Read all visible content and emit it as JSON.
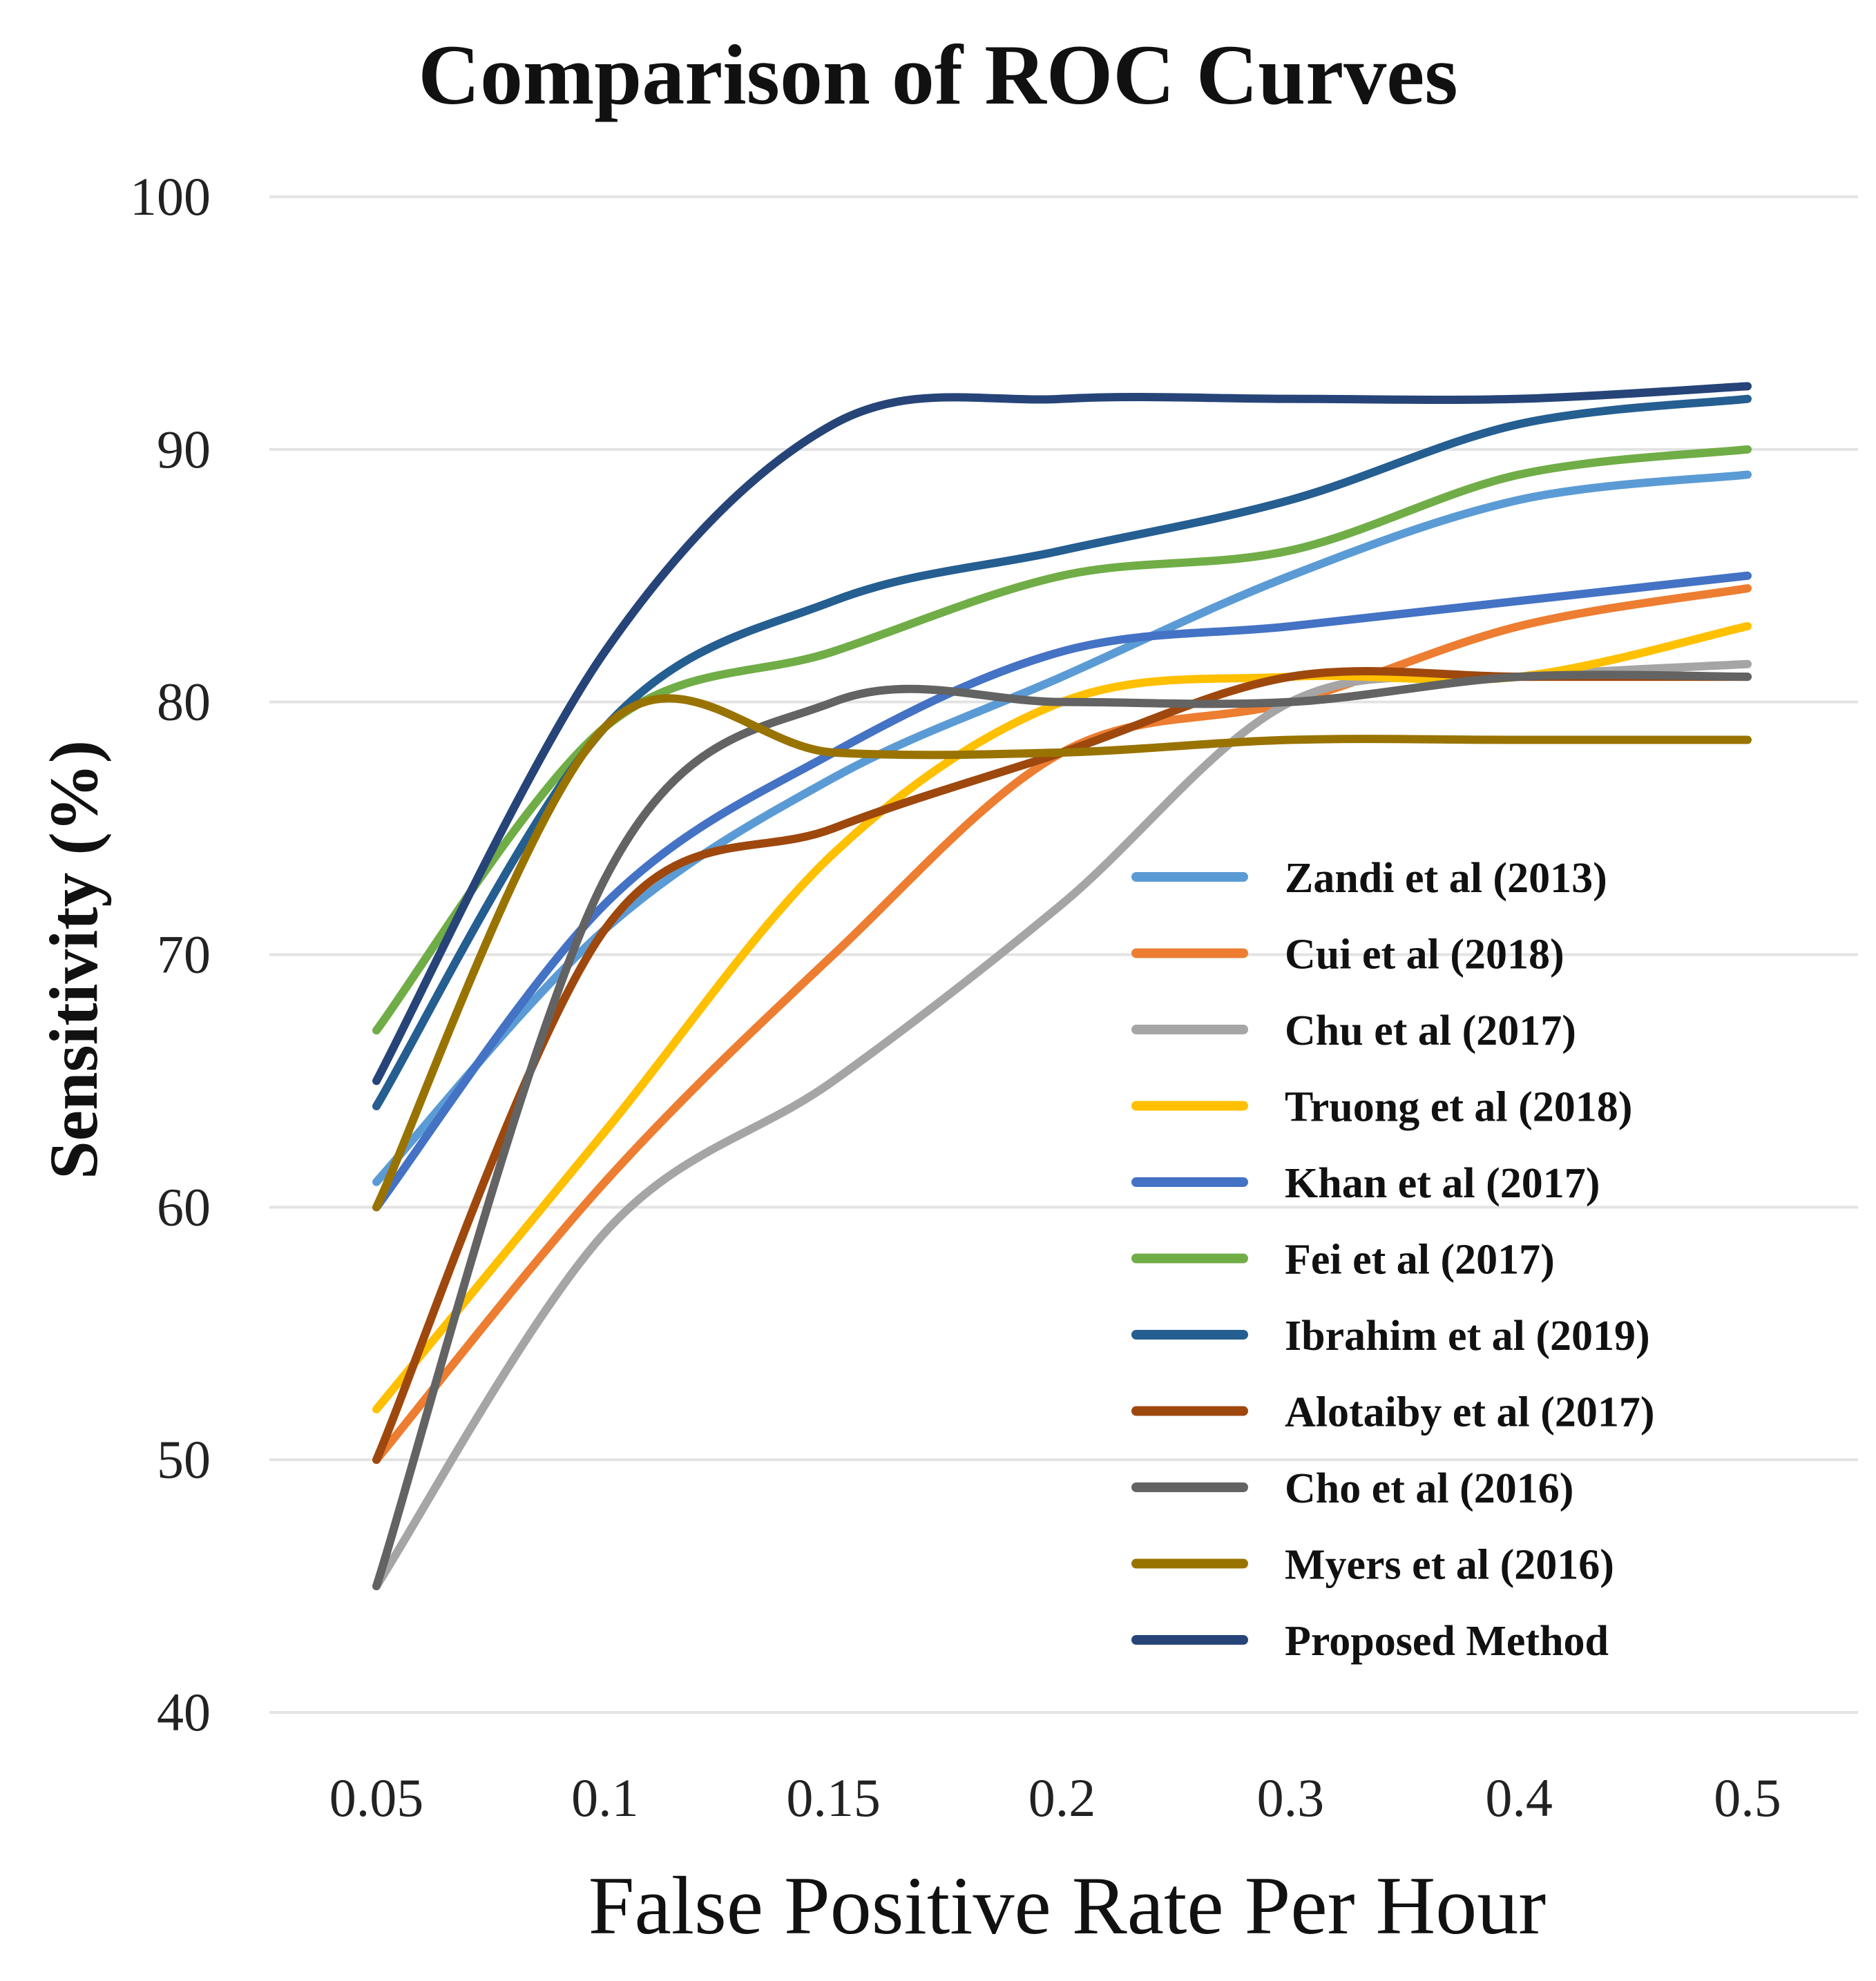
{
  "chart_data": {
    "type": "line",
    "title": "Comparison of ROC Curves",
    "xlabel": "False Positive Rate Per Hour",
    "ylabel": "Sensitivity (%)",
    "categories": [
      "0.05",
      "0.1",
      "0.15",
      "0.2",
      "0.3",
      "0.4",
      "0.5"
    ],
    "ylim": [
      40,
      100
    ],
    "yticks": [
      40,
      50,
      60,
      70,
      80,
      90,
      100
    ],
    "grid": true,
    "legend_position": "bottom-right",
    "series": [
      {
        "name": "Zandi et al (2013)",
        "color": "#5b9bd5",
        "values": [
          61,
          71,
          77,
          81,
          85,
          88,
          89
        ]
      },
      {
        "name": "Cui et al (2018)",
        "color": "#ed7d31",
        "values": [
          50,
          61,
          70,
          78,
          80,
          83,
          84.5
        ]
      },
      {
        "name": "Chu et al (2017)",
        "color": "#a5a5a5",
        "values": [
          45,
          59,
          65,
          72,
          80,
          81,
          81.5
        ]
      },
      {
        "name": "Truong et al (2018)",
        "color": "#ffc000",
        "values": [
          52,
          63,
          74,
          80,
          81,
          81,
          83
        ]
      },
      {
        "name": "Khan et al (2017)",
        "color": "#4472c4",
        "values": [
          60,
          72,
          78,
          82,
          83,
          84,
          85
        ]
      },
      {
        "name": "Fei et al (2017)",
        "color": "#70ad47",
        "values": [
          67,
          79,
          82,
          85,
          86,
          89,
          90
        ]
      },
      {
        "name": "Ibrahim et al (2019)",
        "color": "#255e91",
        "values": [
          64,
          79,
          84,
          86,
          88,
          91,
          92
        ]
      },
      {
        "name": "Alotaiby et al  (2017)",
        "color": "#9e480e",
        "values": [
          50,
          71,
          75,
          78,
          81,
          81,
          81
        ]
      },
      {
        "name": "Cho et al (2016)",
        "color": "#636363",
        "values": [
          45,
          73,
          80,
          80,
          80,
          81,
          81
        ]
      },
      {
        "name": "Myers et al (2016)",
        "color": "#997300",
        "values": [
          60,
          79,
          78,
          78,
          78.5,
          78.5,
          78.5
        ]
      },
      {
        "name": "Proposed Method",
        "color": "#264478",
        "values": [
          65,
          82,
          91,
          92,
          92,
          92,
          92.5
        ]
      }
    ]
  }
}
